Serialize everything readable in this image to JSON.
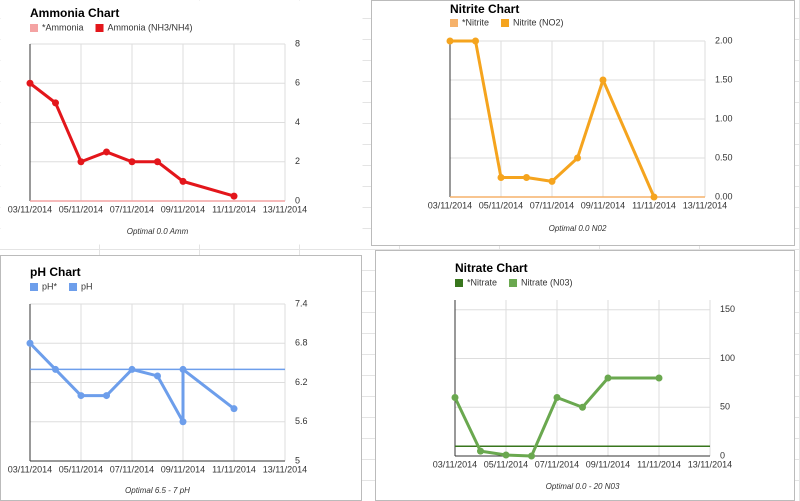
{
  "chart_data": [
    {
      "type": "line",
      "title": "Ammonia Chart",
      "caption": "Optimal 0.0 Amm",
      "grid": true,
      "xlim": [
        "03/11/2014",
        "13/11/2014"
      ],
      "xticks": [
        "03/11/2014",
        "05/11/2014",
        "07/11/2014",
        "09/11/2014",
        "11/11/2014",
        "13/11/2014"
      ],
      "ylim": [
        0,
        8
      ],
      "yticks": [
        0,
        2,
        4,
        6,
        8
      ],
      "series": [
        {
          "name": "*Ammonia",
          "color": "#f4a3a3",
          "x": [
            "03/11/2014",
            "13/11/2014"
          ],
          "values": [
            0,
            0
          ]
        },
        {
          "name": "Ammonia (NH3/NH4)",
          "color": "#e3161b",
          "x": [
            "03/11/2014",
            "04/11/2014",
            "05/11/2014",
            "06/11/2014",
            "07/11/2014",
            "08/11/2014",
            "09/11/2014",
            "11/11/2014"
          ],
          "values": [
            6,
            5,
            2,
            2.5,
            2,
            2,
            1,
            0.25
          ]
        }
      ]
    },
    {
      "type": "line",
      "title": "Nitrite Chart",
      "caption": "Optimal 0.0 N02",
      "grid": true,
      "xlim": [
        "03/11/2014",
        "13/11/2014"
      ],
      "xticks": [
        "03/11/2014",
        "05/11/2014",
        "07/11/2014",
        "09/11/2014",
        "11/11/2014",
        "13/11/2014"
      ],
      "ylim": [
        0,
        2
      ],
      "yticks": [
        {
          "value": 0,
          "label": "0.00"
        },
        {
          "value": 0.5,
          "label": "0.50"
        },
        {
          "value": 1,
          "label": "1.00"
        },
        {
          "value": 1.5,
          "label": "1.50"
        },
        {
          "value": 2,
          "label": "2.00"
        }
      ],
      "series": [
        {
          "name": "*Nitrite",
          "color": "#f6b26b",
          "x": [
            "03/11/2014",
            "13/11/2014"
          ],
          "values": [
            0,
            0
          ]
        },
        {
          "name": "Nitrite (NO2)",
          "color": "#f5a41e",
          "x": [
            "03/11/2014",
            "04/11/2014",
            "05/11/2014",
            "06/11/2014",
            "07/11/2014",
            "08/11/2014",
            "09/11/2014",
            "11/11/2014"
          ],
          "values": [
            2,
            2,
            0.25,
            0.25,
            0.2,
            0.5,
            1.5,
            0
          ]
        }
      ]
    },
    {
      "type": "line",
      "title": "pH Chart",
      "caption": "Optimal 6.5 - 7 pH",
      "grid": true,
      "xlim": [
        "03/11/2014",
        "13/11/2014"
      ],
      "xticks": [
        "03/11/2014",
        "05/11/2014",
        "07/11/2014",
        "09/11/2014",
        "11/11/2014",
        "13/11/2014"
      ],
      "ylim": [
        5,
        7.4
      ],
      "yticks": [
        5,
        5.6,
        6.2,
        6.8,
        7.4
      ],
      "series": [
        {
          "name": "pH*",
          "color": "#6d9eeb",
          "x": [
            "03/11/2014",
            "13/11/2014"
          ],
          "values": [
            6.4,
            6.4
          ]
        },
        {
          "name": "pH",
          "color": "#6d9eeb",
          "x": [
            "03/11/2014",
            "04/11/2014",
            "05/11/2014",
            "06/11/2014",
            "07/11/2014",
            "08/11/2014",
            "09/11/2014",
            "09/11/2014",
            "11/11/2014"
          ],
          "values": [
            6.8,
            6.4,
            6,
            6,
            6.4,
            6.3,
            5.6,
            6.4,
            5.8
          ]
        }
      ]
    },
    {
      "type": "line",
      "title": "Nitrate Chart",
      "caption": "Optimal 0.0 - 20 N03",
      "grid": true,
      "xlim": [
        "03/11/2014",
        "13/11/2014"
      ],
      "xticks": [
        "03/11/2014",
        "05/11/2014",
        "07/11/2014",
        "09/11/2014",
        "11/11/2014",
        "13/11/2014"
      ],
      "ylim": [
        0,
        160
      ],
      "yticks": [
        0,
        50,
        100,
        150
      ],
      "series": [
        {
          "name": "*Nitrate",
          "color": "#38761d",
          "x": [
            "03/11/2014",
            "13/11/2014"
          ],
          "values": [
            10,
            10
          ]
        },
        {
          "name": "Nitrate (N03)",
          "color": "#6aa84f",
          "x": [
            "03/11/2014",
            "04/11/2014",
            "05/11/2014",
            "06/11/2014",
            "07/11/2014",
            "08/11/2014",
            "09/11/2014",
            "11/11/2014"
          ],
          "values": [
            60,
            5,
            1,
            0,
            60,
            50,
            80,
            80
          ]
        }
      ]
    }
  ]
}
